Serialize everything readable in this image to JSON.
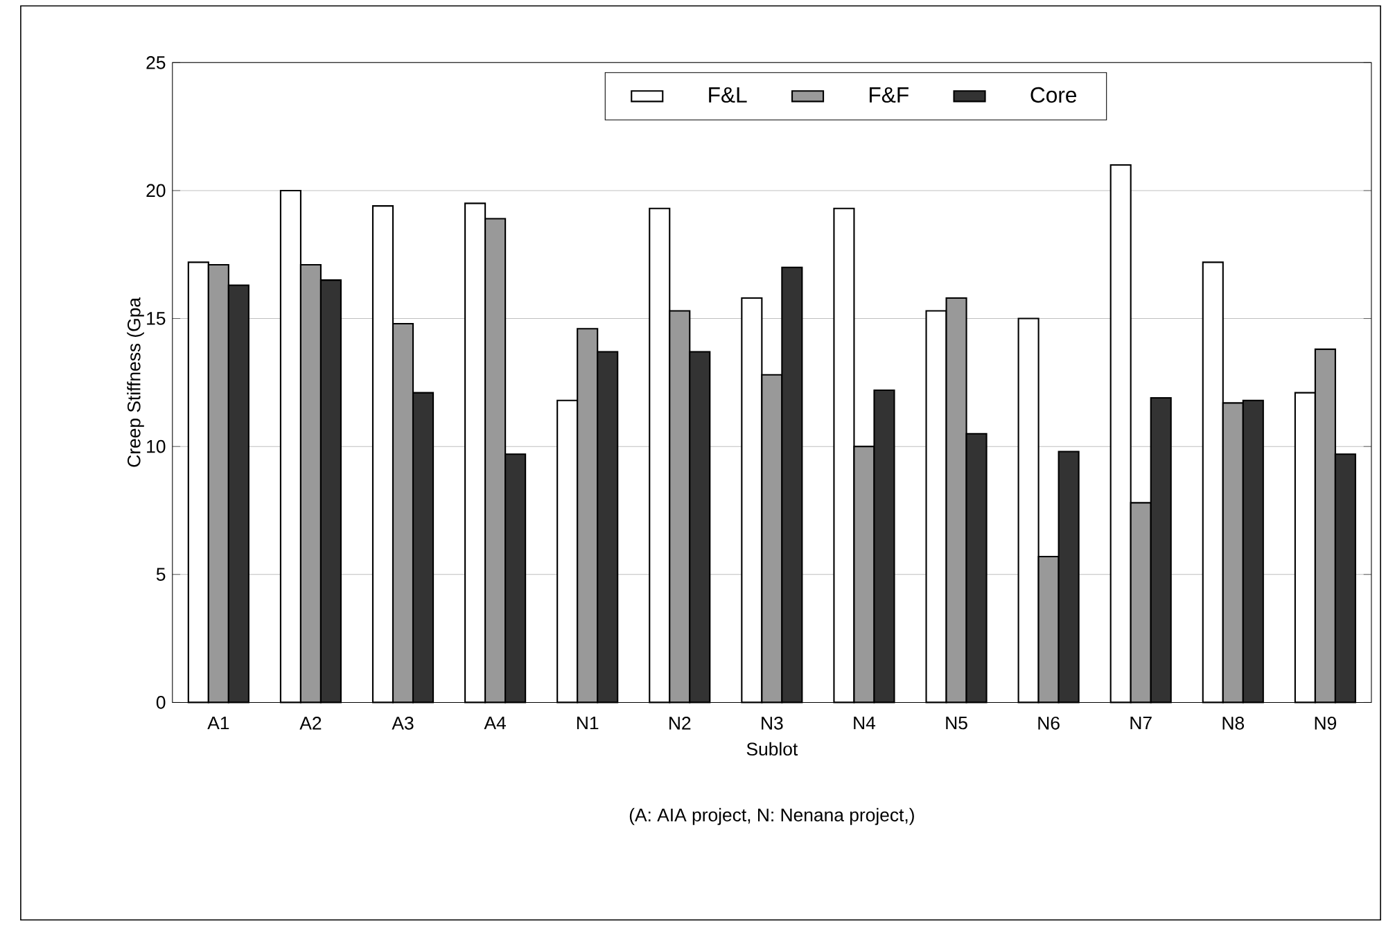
{
  "chart_data": {
    "type": "bar",
    "xlabel": "Sublot",
    "ylabel": "Creep Stiffness (Gpa",
    "annotations": [
      "(A: AIA project, N: Nenana project,)"
    ],
    "categories": [
      "A1",
      "A2",
      "A3",
      "A4",
      "N1",
      "N2",
      "N3",
      "N4",
      "N5",
      "N6",
      "N7",
      "N8",
      "N9"
    ],
    "series": [
      {
        "name": "F&L",
        "color": "#ffffff",
        "values": [
          17.2,
          20.0,
          19.4,
          19.5,
          11.8,
          19.3,
          15.8,
          19.3,
          15.3,
          15.0,
          21.0,
          17.2,
          12.1
        ]
      },
      {
        "name": "F&F",
        "color": "#999999",
        "values": [
          17.1,
          17.1,
          14.8,
          18.9,
          14.6,
          15.3,
          12.8,
          10.0,
          15.8,
          5.7,
          7.8,
          11.7,
          13.8
        ]
      },
      {
        "name": "Core",
        "color": "#333333",
        "values": [
          16.3,
          16.5,
          12.1,
          9.7,
          13.7,
          13.7,
          17.0,
          12.2,
          10.5,
          9.8,
          11.9,
          11.8,
          9.7
        ]
      }
    ],
    "ylim": [
      0,
      25
    ],
    "yticks": [
      0,
      5,
      10,
      15,
      20,
      25
    ],
    "grid": "y",
    "legend": "top"
  }
}
